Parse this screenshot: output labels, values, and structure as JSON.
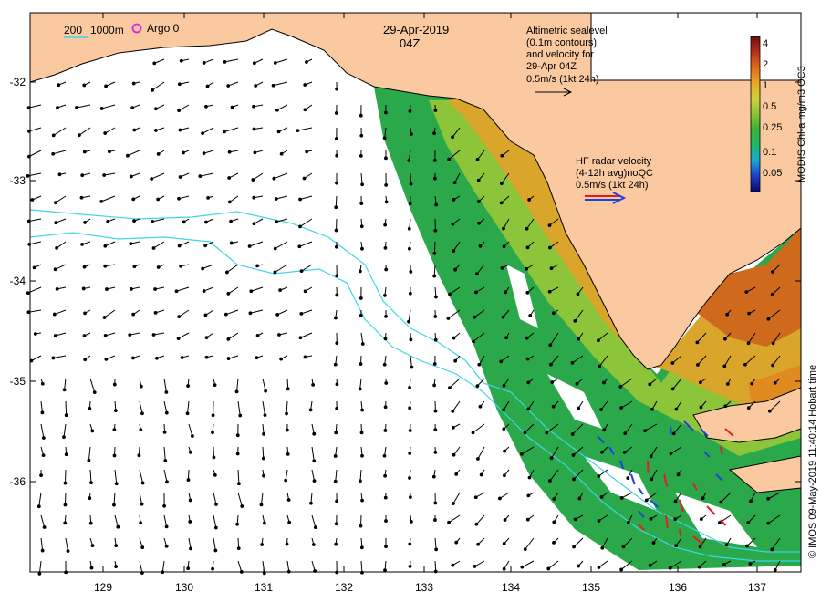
{
  "header": {
    "date": "29-Apr-2019",
    "time": "04Z"
  },
  "legend": {
    "contour_200": "200",
    "contour_1000": "1000m",
    "argo_label": "Argo 0"
  },
  "altimetry_note": {
    "lines": [
      "Altimetric sealevel",
      "(0.1m contours)",
      "and velocity for",
      "29-Apr 04Z",
      "0.5m/s (1kt 24h)"
    ]
  },
  "hf_radar_note": {
    "lines": [
      "HF radar velocity",
      "(4-12h avg)noQC",
      "0.5m/s (1kt 24h)"
    ]
  },
  "colorbar": {
    "title": "MODIS Chl-a mg/m3 OC3",
    "ticks": [
      "4",
      "2",
      "1",
      "0.5",
      "0.25",
      "0.1",
      "0.05"
    ],
    "colors": [
      "#08086b",
      "#1b3fc7",
      "#1aa6d6",
      "#1fb86a",
      "#37b335",
      "#8cc43a",
      "#cfd23a",
      "#e9a824",
      "#df6b1b",
      "#b8301a",
      "#6e0c0c"
    ]
  },
  "axes": {
    "x_ticks": [
      "129",
      "130",
      "131",
      "132",
      "133",
      "134",
      "135",
      "136",
      "137"
    ],
    "y_ticks": [
      "-32",
      "-33",
      "-34",
      "-35",
      "-36"
    ]
  },
  "credit": "© IMOS 09-May-2019 11:40:14 Hobart time",
  "colors": {
    "land": "#fbc9a0",
    "contour": "#3fd6e6",
    "argo": "#e020e0",
    "hf_red": "#e02020",
    "hf_blue": "#2040e0"
  }
}
